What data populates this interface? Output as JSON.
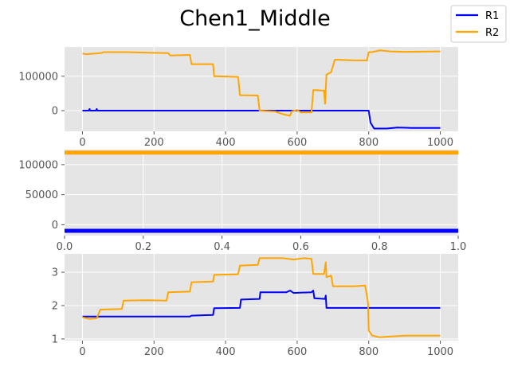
{
  "title": "Chen1_Middle",
  "colors": {
    "R1": "#0000ff",
    "R2": "#ffa500",
    "panel_background": "#e5e5e5",
    "grid": "#ffffff"
  },
  "legend": {
    "placement": "top-right",
    "entries": [
      {
        "label": "R1",
        "color": "#0000ff"
      },
      {
        "label": "R2",
        "color": "#ffa500"
      }
    ]
  },
  "chart_data": [
    {
      "type": "line",
      "xlim": [
        -50,
        1050
      ],
      "ylim": [
        -60000,
        185000
      ],
      "x_ticks": [
        {
          "v": 0,
          "label": "0"
        },
        {
          "v": 200,
          "label": "200"
        },
        {
          "v": 400,
          "label": "400"
        },
        {
          "v": 600,
          "label": "600"
        },
        {
          "v": 800,
          "label": "800"
        },
        {
          "v": 1000,
          "label": "1000"
        }
      ],
      "y_ticks": [
        {
          "v": 0,
          "label": "0"
        },
        {
          "v": 100000,
          "label": "100000"
        }
      ],
      "grid": true,
      "series": [
        {
          "name": "R1",
          "color": "#0000ff",
          "points": [
            [
              0,
              0
            ],
            [
              18,
              0
            ],
            [
              20,
              5000
            ],
            [
              22,
              0
            ],
            [
              38,
              0
            ],
            [
              40,
              5000
            ],
            [
              42,
              0
            ],
            [
              800,
              0
            ],
            [
              805,
              -35000
            ],
            [
              815,
              -52000
            ],
            [
              850,
              -52000
            ],
            [
              880,
              -49000
            ],
            [
              920,
              -50000
            ],
            [
              1000,
              -50000
            ]
          ]
        },
        {
          "name": "R2",
          "color": "#ffa500",
          "points": [
            [
              0,
              166000
            ],
            [
              10,
              164000
            ],
            [
              50,
              167000
            ],
            [
              60,
              170000
            ],
            [
              120,
              170000
            ],
            [
              200,
              168000
            ],
            [
              240,
              167000
            ],
            [
              245,
              160000
            ],
            [
              300,
              162000
            ],
            [
              305,
              135000
            ],
            [
              365,
              135000
            ],
            [
              368,
              100000
            ],
            [
              435,
              98000
            ],
            [
              440,
              45000
            ],
            [
              490,
              44000
            ],
            [
              495,
              0
            ],
            [
              540,
              -3000
            ],
            [
              560,
              -10000
            ],
            [
              580,
              -15000
            ],
            [
              585,
              -2000
            ],
            [
              600,
              2000
            ],
            [
              610,
              -5000
            ],
            [
              640,
              -5000
            ],
            [
              645,
              60000
            ],
            [
              675,
              58000
            ],
            [
              678,
              20000
            ],
            [
              682,
              105000
            ],
            [
              695,
              112000
            ],
            [
              705,
              148000
            ],
            [
              760,
              146000
            ],
            [
              795,
              146000
            ],
            [
              800,
              170000
            ],
            [
              810,
              170000
            ],
            [
              830,
              175000
            ],
            [
              860,
              172000
            ],
            [
              900,
              171000
            ],
            [
              1000,
              172000
            ]
          ]
        }
      ]
    },
    {
      "type": "line",
      "xlim": [
        0,
        1
      ],
      "ylim": [
        -18000,
        125000
      ],
      "x_ticks": [
        {
          "v": 0,
          "label": "0.0"
        },
        {
          "v": 0.2,
          "label": "0.2"
        },
        {
          "v": 0.4,
          "label": "0.4"
        },
        {
          "v": 0.6,
          "label": "0.6"
        },
        {
          "v": 0.8,
          "label": "0.8"
        },
        {
          "v": 1.0,
          "label": "1.0"
        }
      ],
      "y_ticks": [
        {
          "v": 0,
          "label": "0"
        },
        {
          "v": 50000,
          "label": "50000"
        },
        {
          "v": 100000,
          "label": "100000"
        }
      ],
      "grid": true,
      "series": [
        {
          "name": "R1",
          "color": "#0000ff",
          "points": [
            [
              0,
              -10000
            ],
            [
              1,
              -10000
            ]
          ]
        },
        {
          "name": "R2",
          "color": "#ffa500",
          "points": [
            [
              0,
              120000
            ],
            [
              1,
              120000
            ]
          ]
        }
      ]
    },
    {
      "type": "line",
      "xlim": [
        -50,
        1050
      ],
      "ylim": [
        0.95,
        3.55
      ],
      "x_ticks": [
        {
          "v": 0,
          "label": "0"
        },
        {
          "v": 200,
          "label": "200"
        },
        {
          "v": 400,
          "label": "400"
        },
        {
          "v": 600,
          "label": "600"
        },
        {
          "v": 800,
          "label": "800"
        },
        {
          "v": 1000,
          "label": "1000"
        }
      ],
      "y_ticks": [
        {
          "v": 1,
          "label": "1"
        },
        {
          "v": 2,
          "label": "2"
        },
        {
          "v": 3,
          "label": "3"
        }
      ],
      "grid": true,
      "series": [
        {
          "name": "R1",
          "color": "#0000ff",
          "points": [
            [
              0,
              1.67
            ],
            [
              300,
              1.67
            ],
            [
              305,
              1.7
            ],
            [
              365,
              1.72
            ],
            [
              368,
              1.92
            ],
            [
              440,
              1.93
            ],
            [
              443,
              2.18
            ],
            [
              495,
              2.2
            ],
            [
              497,
              2.4
            ],
            [
              570,
              2.4
            ],
            [
              580,
              2.45
            ],
            [
              590,
              2.38
            ],
            [
              640,
              2.4
            ],
            [
              645,
              2.45
            ],
            [
              648,
              2.22
            ],
            [
              678,
              2.2
            ],
            [
              680,
              2.3
            ],
            [
              682,
              1.93
            ],
            [
              1000,
              1.93
            ]
          ]
        },
        {
          "name": "R2",
          "color": "#ffa500",
          "points": [
            [
              0,
              1.65
            ],
            [
              20,
              1.6
            ],
            [
              40,
              1.62
            ],
            [
              50,
              1.88
            ],
            [
              110,
              1.9
            ],
            [
              115,
              2.15
            ],
            [
              180,
              2.16
            ],
            [
              235,
              2.15
            ],
            [
              240,
              2.4
            ],
            [
              300,
              2.42
            ],
            [
              305,
              2.7
            ],
            [
              365,
              2.72
            ],
            [
              368,
              2.92
            ],
            [
              435,
              2.94
            ],
            [
              440,
              3.2
            ],
            [
              490,
              3.22
            ],
            [
              495,
              3.42
            ],
            [
              560,
              3.42
            ],
            [
              575,
              3.4
            ],
            [
              590,
              3.38
            ],
            [
              620,
              3.42
            ],
            [
              640,
              3.4
            ],
            [
              645,
              2.95
            ],
            [
              675,
              2.95
            ],
            [
              680,
              3.3
            ],
            [
              682,
              2.85
            ],
            [
              695,
              2.9
            ],
            [
              700,
              2.58
            ],
            [
              760,
              2.58
            ],
            [
              790,
              2.6
            ],
            [
              798,
              2.1
            ],
            [
              800,
              1.25
            ],
            [
              810,
              1.1
            ],
            [
              830,
              1.05
            ],
            [
              870,
              1.08
            ],
            [
              900,
              1.1
            ],
            [
              1000,
              1.1
            ]
          ]
        }
      ]
    }
  ]
}
